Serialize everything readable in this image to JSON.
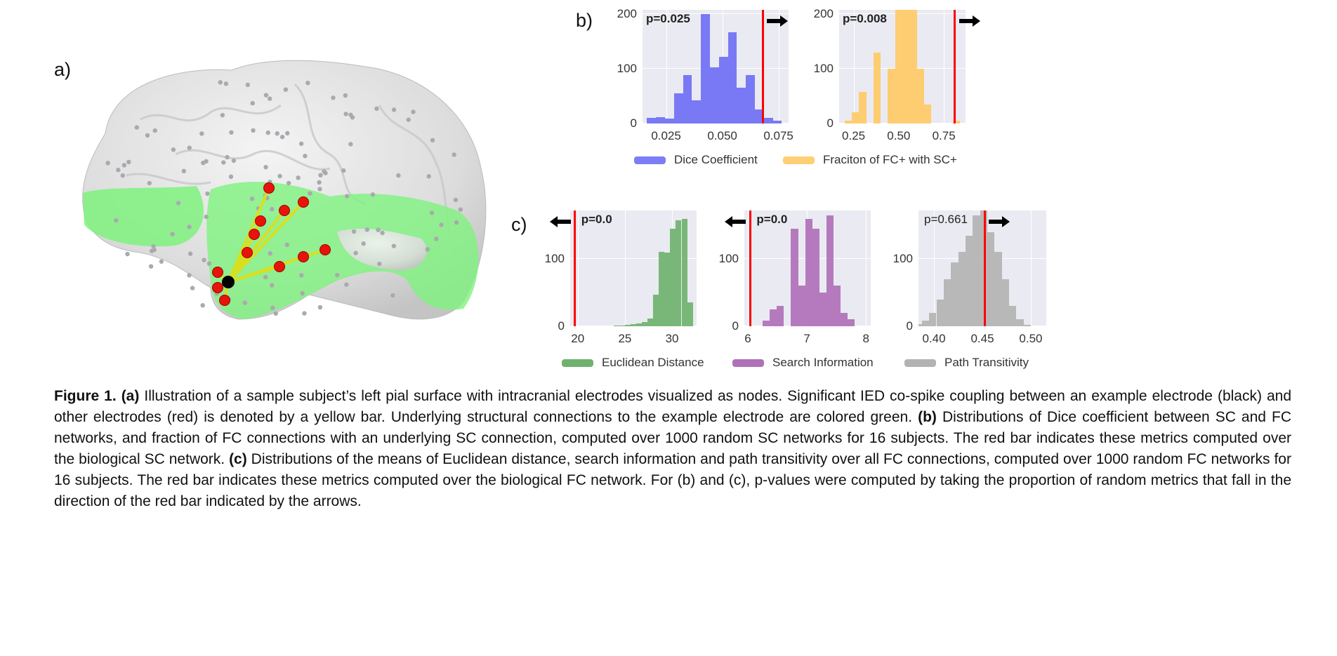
{
  "panels": {
    "a": "a)",
    "b": "b)",
    "c": "c)"
  },
  "legend_b": [
    {
      "label": "Dice Coefficient",
      "color": "#6f6ff5"
    },
    {
      "label": "Fraciton of FC+ with SC+",
      "color": "#ffc966"
    }
  ],
  "legend_c": [
    {
      "label": "Euclidean Distance",
      "color": "#6fb26f"
    },
    {
      "label": "Search Information",
      "color": "#b070b8"
    },
    {
      "label": "Path Transitivity",
      "color": "#b3b3b3"
    }
  ],
  "chart_data": [
    {
      "type": "bar",
      "name": "dice",
      "title": "Dice Coefficient",
      "p_label": "p=0.025",
      "p_bold": true,
      "arrow": "right",
      "bin_start": 0.0165,
      "bin_width": 0.004,
      "counts": [
        10,
        11,
        9,
        55,
        88,
        43,
        200,
        103,
        122,
        167,
        65,
        88,
        26,
        10,
        5
      ],
      "red_line": 0.068,
      "xlim": [
        0.0145,
        0.0795
      ],
      "ylim": [
        0,
        208
      ],
      "xticks": [
        0.025,
        0.05,
        0.075
      ],
      "xtick_labels": [
        "0.025",
        "0.050",
        "0.075"
      ],
      "yticks": [
        0,
        100,
        200
      ],
      "ytick_labels": [
        "0",
        "100",
        "200"
      ],
      "color": "#6f6ff5"
    },
    {
      "type": "bar",
      "name": "fraction",
      "title": "Fraciton of FC+ with SC+",
      "p_label": "p=0.008",
      "p_bold": true,
      "arrow": "right",
      "bin_start": 0.2,
      "bin_width": 0.04,
      "counts": [
        5,
        20,
        58,
        0,
        130,
        0,
        100,
        215,
        210,
        210,
        100,
        35,
        0,
        0,
        0,
        5
      ],
      "red_line": 0.81,
      "xlim": [
        0.17,
        0.87
      ],
      "ylim": [
        0,
        208
      ],
      "xticks": [
        0.25,
        0.5,
        0.75
      ],
      "xtick_labels": [
        "0.25",
        "0.50",
        "0.75"
      ],
      "yticks": [
        0,
        100,
        200
      ],
      "ytick_labels": [
        "0",
        "100",
        "200"
      ],
      "color": "#ffc966"
    },
    {
      "type": "bar",
      "name": "euclidean",
      "title": "Euclidean Distance",
      "p_label": "p=0.0",
      "p_bold": true,
      "arrow": "left",
      "bin_start": 23.8,
      "bin_width": 0.6,
      "counts": [
        1,
        1,
        2,
        3,
        4,
        6,
        12,
        47,
        110,
        109,
        145,
        157,
        160,
        35
      ],
      "red_line": 19.7,
      "xlim": [
        19.2,
        32.6
      ],
      "ylim": [
        0,
        172
      ],
      "xticks": [
        20,
        25,
        30
      ],
      "xtick_labels": [
        "20",
        "25",
        "30"
      ],
      "yticks": [
        0,
        100
      ],
      "ytick_labels": [
        "0",
        "100"
      ],
      "color": "#6fb26f"
    },
    {
      "type": "bar",
      "name": "search-information",
      "title": "Search Information",
      "p_label": "p=0.0",
      "p_bold": true,
      "arrow": "left",
      "bin_start": 6.25,
      "bin_width": 0.12,
      "counts": [
        8,
        25,
        30,
        0,
        145,
        60,
        160,
        145,
        50,
        165,
        60,
        20,
        10,
        0
      ],
      "red_line": 6.04,
      "xlim": [
        5.94,
        8.08
      ],
      "ylim": [
        0,
        172
      ],
      "xticks": [
        6,
        7,
        8
      ],
      "xtick_labels": [
        "6",
        "7",
        "8"
      ],
      "yticks": [
        0,
        100
      ],
      "ytick_labels": [
        "0",
        "100"
      ],
      "color": "#b070b8"
    },
    {
      "type": "bar",
      "name": "path-transitivity",
      "title": "Path Transitivity",
      "p_label": "p=0.661",
      "p_bold": false,
      "arrow": "right",
      "bin_start": 0.365,
      "bin_width": 0.0075,
      "counts": [
        2,
        1,
        3,
        8,
        20,
        40,
        70,
        95,
        110,
        135,
        165,
        172,
        140,
        110,
        70,
        30,
        10,
        2
      ],
      "red_line": 0.4525,
      "xlim": [
        0.384,
        0.516
      ],
      "ylim": [
        0,
        172
      ],
      "xticks": [
        0.4,
        0.45,
        0.5
      ],
      "xtick_labels": [
        "0.40",
        "0.45",
        "0.50"
      ],
      "yticks": [
        0,
        100
      ],
      "ytick_labels": [
        "0",
        "100"
      ],
      "color": "#b3b3b3"
    }
  ],
  "caption": [
    {
      "text": "Figure 1. ",
      "bold": true
    },
    {
      "text": "(a)",
      "bold": true
    },
    {
      "text": " Illustration of a sample subject’s left pial surface with intracranial electrodes visualized as nodes. Significant IED co-spike coupling between an example electrode (black) and other electrodes (red) is denoted by a yellow bar. Underlying structural connections to the example electrode are colored green. ",
      "bold": false
    },
    {
      "text": "(b)",
      "bold": true
    },
    {
      "text": " Distributions of Dice coefficient between SC and FC networks, and fraction of FC connections with an underlying SC connection, computed over 1000 random SC networks for 16 subjects. The red bar indicates these metrics computed over the biological SC network. ",
      "bold": false
    },
    {
      "text": "(c)",
      "bold": true
    },
    {
      "text": " Distributions of the means of Euclidean distance, search information and path transitivity over all FC connections, computed over 1000 random FC networks for 16 subjects. The red bar indicates these metrics computed over the biological FC network. For (b) and (c), p-values were computed by taking the proportion of random metrics that fall in the direction of the red bar indicated by the arrows.",
      "bold": false
    }
  ]
}
